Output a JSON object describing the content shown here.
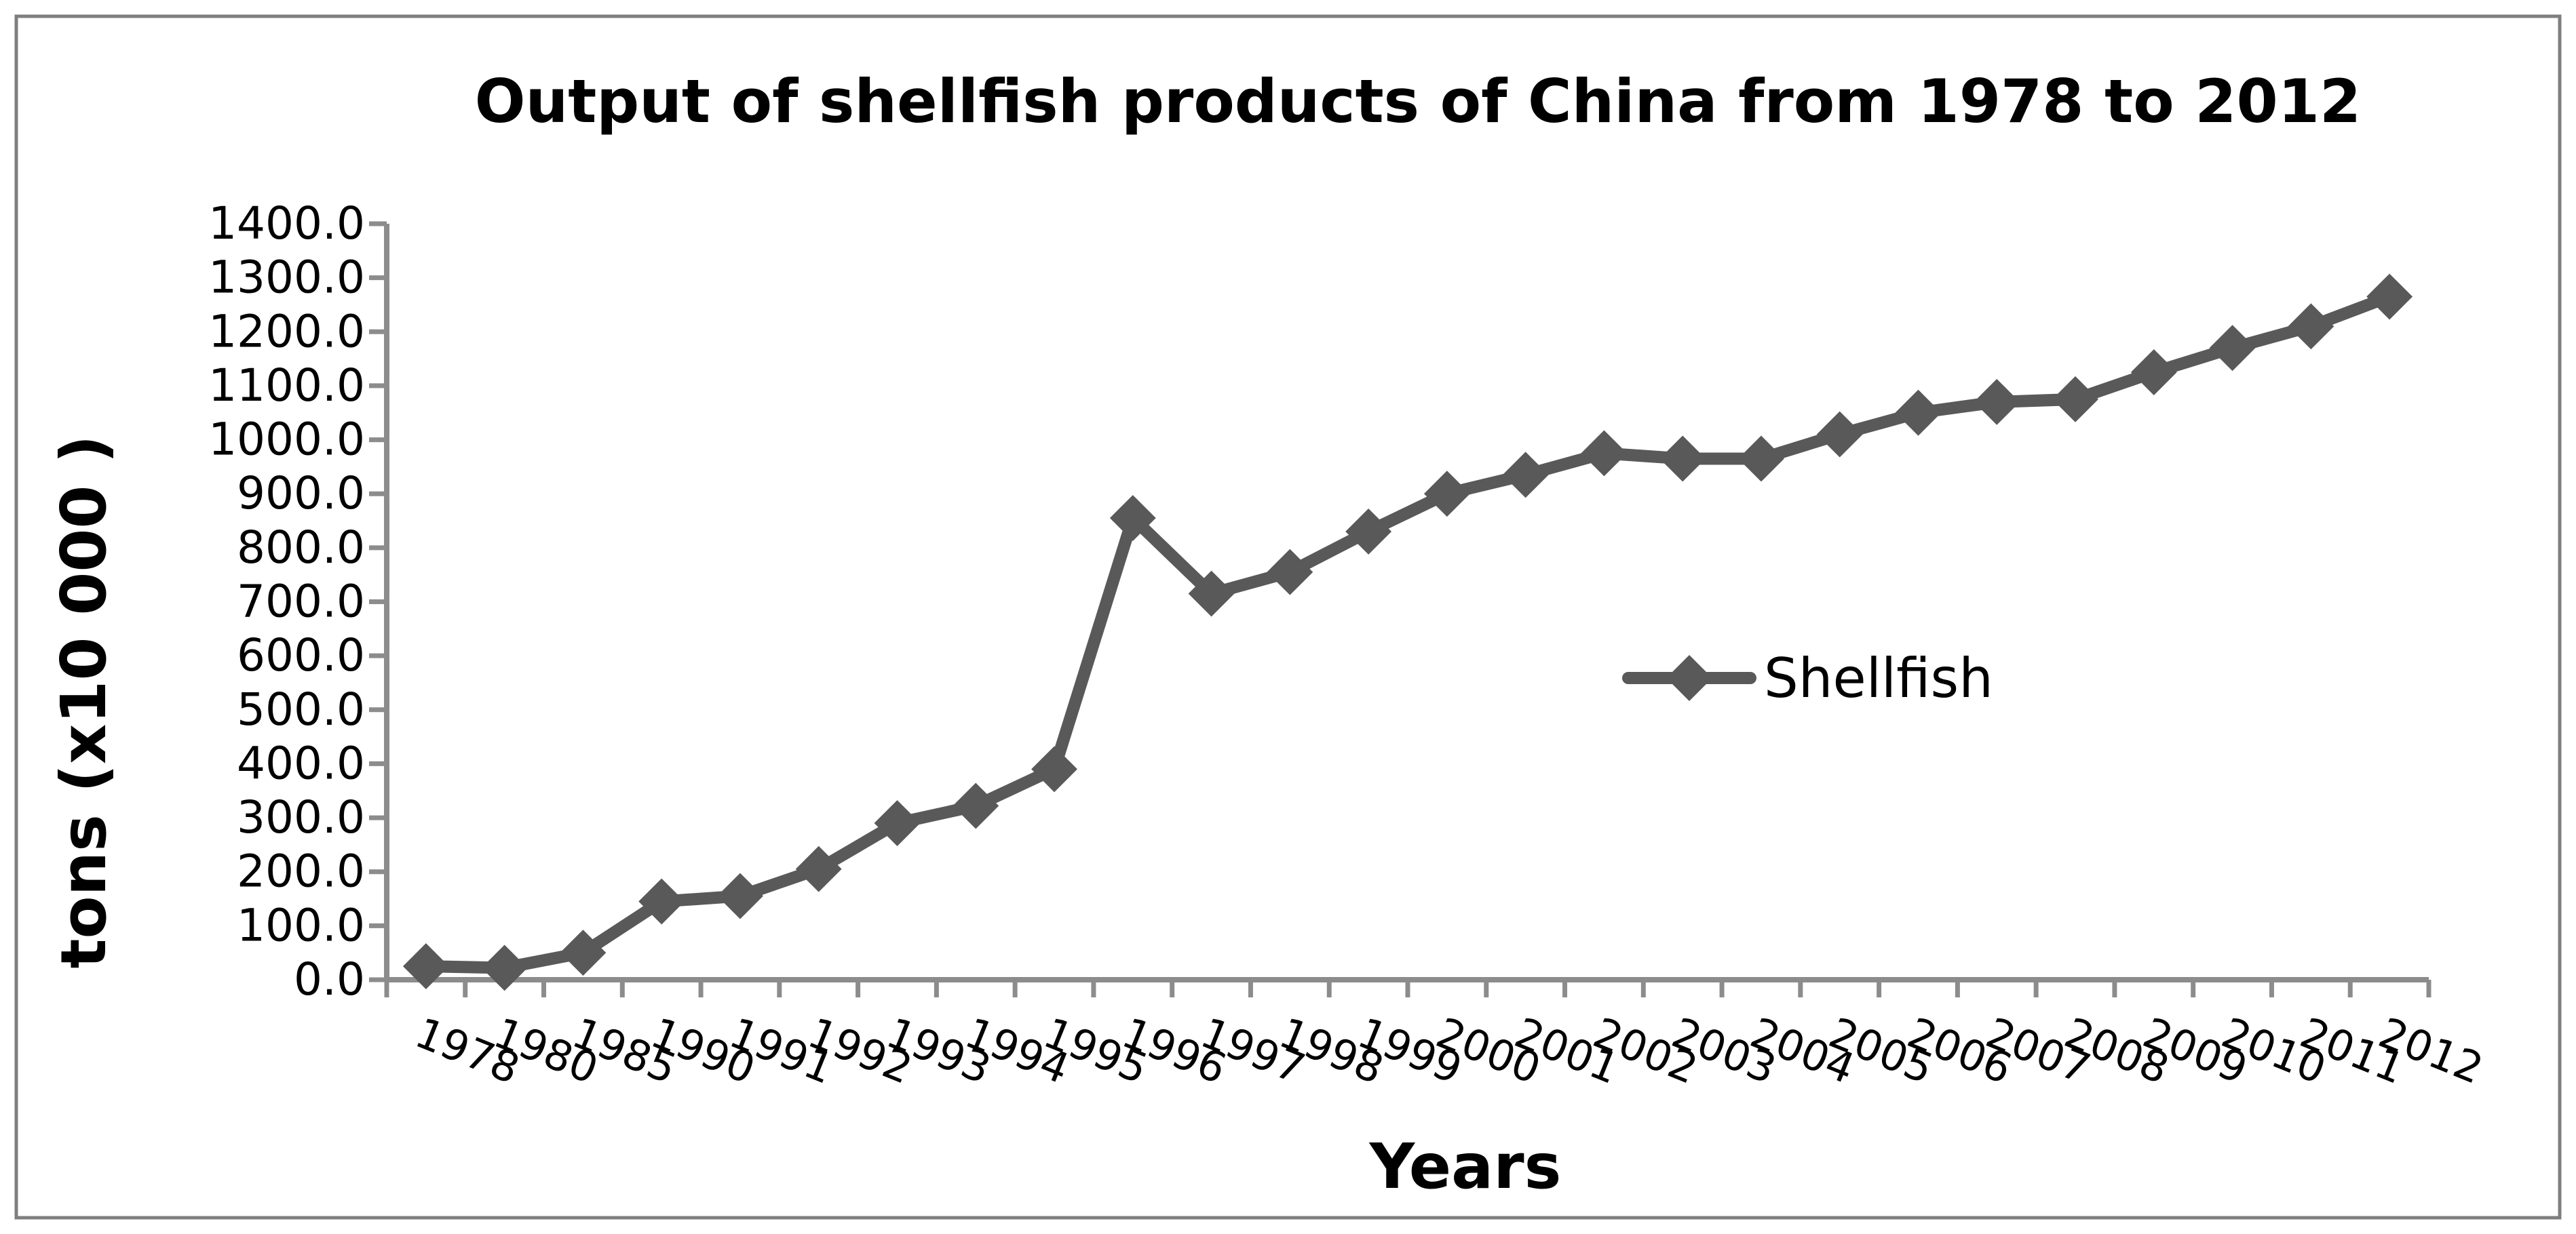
{
  "colors": {
    "series": "#595959",
    "axis": "#8c8c8c",
    "border": "#7f7f7f"
  },
  "chart_data": {
    "type": "line",
    "title": "Output of shellfish products of China from 1978 to 2012",
    "xlabel": "Years",
    "ylabel": "tons (x10 000 )",
    "ylim": [
      0,
      1400
    ],
    "yticks": [
      "0.0",
      "100.0",
      "200.0",
      "300.0",
      "400.0",
      "500.0",
      "600.0",
      "700.0",
      "800.0",
      "900.0",
      "1000.0",
      "1100.0",
      "1200.0",
      "1300.0",
      "1400.0"
    ],
    "grid": false,
    "legend_position": "center-right",
    "categories": [
      "1978",
      "1980",
      "1985",
      "1990",
      "1991",
      "1992",
      "1993",
      "1994",
      "1995",
      "1996",
      "1997",
      "1998",
      "1999",
      "2000",
      "2001",
      "2002",
      "2003",
      "2004",
      "2005",
      "2006",
      "2007",
      "2008",
      "2009",
      "2010",
      "2011",
      "2012"
    ],
    "series": [
      {
        "name": "Shellfish",
        "values": [
          25,
          22,
          50,
          145,
          155,
          205,
          290,
          322,
          390,
          855,
          715,
          755,
          830,
          900,
          935,
          975,
          965,
          965,
          1010,
          1050,
          1070,
          1075,
          1125,
          1170,
          1210,
          1265
        ]
      }
    ]
  }
}
